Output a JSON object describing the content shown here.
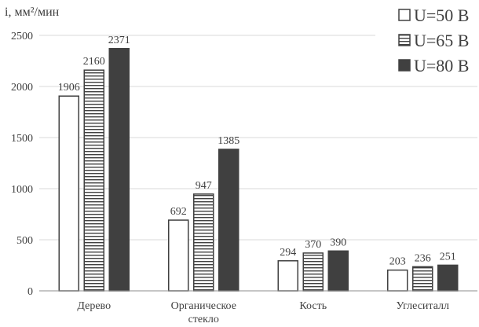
{
  "chart_data": {
    "type": "bar",
    "ylabel": "i, мм²/мин",
    "categories": [
      "Дерево",
      "Органическое стекло",
      "Кость",
      "Углеситалл"
    ],
    "series": [
      {
        "name": "U=50 В",
        "values": [
          1906,
          692,
          294,
          203
        ],
        "fill": "#ffffff",
        "pattern": "hollow"
      },
      {
        "name": "U=65 В",
        "values": [
          2160,
          947,
          370,
          236
        ],
        "fill": "#ffffff",
        "pattern": "horizontal-stripes"
      },
      {
        "name": "U=80 В",
        "values": [
          2371,
          1385,
          390,
          251
        ],
        "fill": "#404040",
        "pattern": "solid"
      }
    ],
    "yticks": [
      0,
      500,
      1000,
      1500,
      2000,
      2500
    ],
    "ylim": [
      0,
      2500
    ],
    "grid": true,
    "legend_position": "top-right",
    "colors": {
      "axis": "#8c8c8c",
      "grid": "#d9d9d9",
      "dark": "#404040",
      "text": "#404040"
    }
  }
}
